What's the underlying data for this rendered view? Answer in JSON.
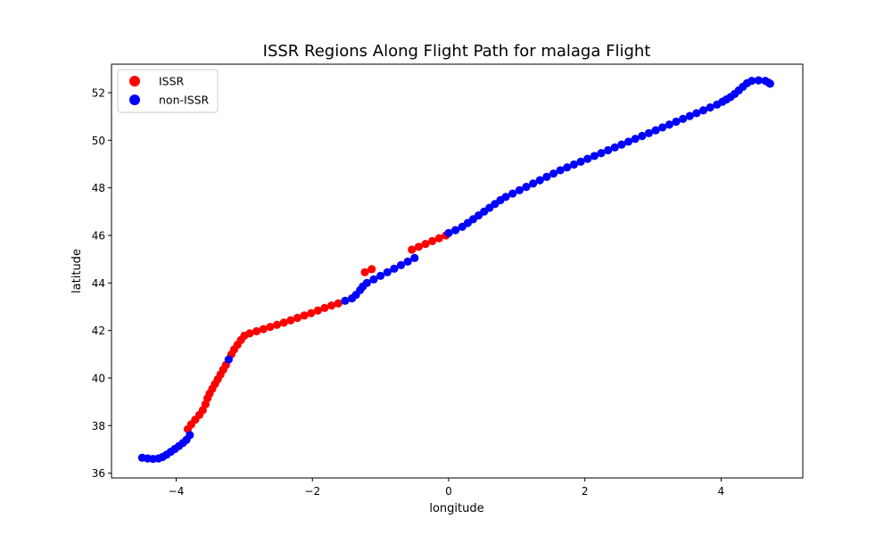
{
  "chart_data": {
    "type": "scatter",
    "title": "ISSR Regions Along Flight Path for malaga Flight",
    "xlabel": "longitude",
    "ylabel": "latitude",
    "xlim": [
      -4.95,
      5.2
    ],
    "ylim": [
      35.8,
      53.2
    ],
    "xticks": [
      -4,
      -2,
      0,
      2,
      4
    ],
    "xtick_labels": [
      "−4",
      "−2",
      "0",
      "2",
      "4"
    ],
    "yticks": [
      36,
      38,
      40,
      42,
      44,
      46,
      48,
      50,
      52
    ],
    "ytick_labels": [
      "36",
      "38",
      "40",
      "42",
      "44",
      "46",
      "48",
      "50",
      "52"
    ],
    "grid": false,
    "legend": {
      "position": "top-left"
    },
    "colors": {
      "ISSR": "#ff0000",
      "non-ISSR": "#0000ff"
    },
    "series": [
      {
        "name": "ISSR",
        "color": "#ff0000",
        "points": [
          [
            -3.83,
            37.85
          ],
          [
            -3.78,
            38.05
          ],
          [
            -3.72,
            38.25
          ],
          [
            -3.66,
            38.45
          ],
          [
            -3.61,
            38.65
          ],
          [
            -3.57,
            38.9
          ],
          [
            -3.54,
            39.15
          ],
          [
            -3.51,
            39.35
          ],
          [
            -3.47,
            39.55
          ],
          [
            -3.43,
            39.75
          ],
          [
            -3.39,
            39.95
          ],
          [
            -3.35,
            40.15
          ],
          [
            -3.31,
            40.35
          ],
          [
            -3.27,
            40.55
          ],
          [
            -3.19,
            41.0
          ],
          [
            -3.15,
            41.2
          ],
          [
            -3.1,
            41.4
          ],
          [
            -3.05,
            41.6
          ],
          [
            -3.0,
            41.78
          ],
          [
            -2.92,
            41.88
          ],
          [
            -2.82,
            41.97
          ],
          [
            -2.72,
            42.06
          ],
          [
            -2.62,
            42.15
          ],
          [
            -2.52,
            42.24
          ],
          [
            -2.42,
            42.33
          ],
          [
            -2.32,
            42.43
          ],
          [
            -2.22,
            42.53
          ],
          [
            -2.12,
            42.63
          ],
          [
            -2.02,
            42.73
          ],
          [
            -1.92,
            42.84
          ],
          [
            -1.82,
            42.95
          ],
          [
            -1.72,
            43.05
          ],
          [
            -1.62,
            43.14
          ],
          [
            -1.23,
            44.45
          ],
          [
            -1.13,
            44.58
          ],
          [
            -0.54,
            45.4
          ],
          [
            -0.44,
            45.52
          ],
          [
            -0.34,
            45.64
          ],
          [
            -0.24,
            45.76
          ],
          [
            -0.14,
            45.88
          ],
          [
            -0.04,
            46.0
          ]
        ]
      },
      {
        "name": "non-ISSR",
        "color": "#0000ff",
        "points": [
          [
            -4.5,
            36.65
          ],
          [
            -4.42,
            36.62
          ],
          [
            -4.34,
            36.6
          ],
          [
            -4.26,
            36.62
          ],
          [
            -4.2,
            36.68
          ],
          [
            -4.14,
            36.78
          ],
          [
            -4.08,
            36.9
          ],
          [
            -4.02,
            37.02
          ],
          [
            -3.96,
            37.14
          ],
          [
            -3.9,
            37.27
          ],
          [
            -3.85,
            37.4
          ],
          [
            -3.8,
            37.6
          ],
          [
            -3.23,
            40.78
          ],
          [
            -1.52,
            43.25
          ],
          [
            -1.42,
            43.35
          ],
          [
            -1.36,
            43.5
          ],
          [
            -1.3,
            43.7
          ],
          [
            -1.26,
            43.85
          ],
          [
            -1.2,
            44.0
          ],
          [
            -1.1,
            44.15
          ],
          [
            -1.0,
            44.3
          ],
          [
            -0.9,
            44.45
          ],
          [
            -0.8,
            44.6
          ],
          [
            -0.7,
            44.75
          ],
          [
            -0.6,
            44.9
          ],
          [
            -0.5,
            45.05
          ],
          [
            0.0,
            46.1
          ],
          [
            0.1,
            46.22
          ],
          [
            0.2,
            46.36
          ],
          [
            0.28,
            46.52
          ],
          [
            0.36,
            46.68
          ],
          [
            0.44,
            46.84
          ],
          [
            0.52,
            47.0
          ],
          [
            0.6,
            47.16
          ],
          [
            0.68,
            47.32
          ],
          [
            0.76,
            47.48
          ],
          [
            0.84,
            47.62
          ],
          [
            0.94,
            47.76
          ],
          [
            1.04,
            47.9
          ],
          [
            1.14,
            48.04
          ],
          [
            1.24,
            48.18
          ],
          [
            1.34,
            48.32
          ],
          [
            1.44,
            48.46
          ],
          [
            1.54,
            48.6
          ],
          [
            1.64,
            48.74
          ],
          [
            1.74,
            48.86
          ],
          [
            1.84,
            48.98
          ],
          [
            1.94,
            49.1
          ],
          [
            2.04,
            49.22
          ],
          [
            2.14,
            49.34
          ],
          [
            2.24,
            49.46
          ],
          [
            2.34,
            49.58
          ],
          [
            2.44,
            49.7
          ],
          [
            2.54,
            49.82
          ],
          [
            2.64,
            49.94
          ],
          [
            2.74,
            50.06
          ],
          [
            2.84,
            50.18
          ],
          [
            2.94,
            50.3
          ],
          [
            3.04,
            50.42
          ],
          [
            3.14,
            50.54
          ],
          [
            3.24,
            50.66
          ],
          [
            3.34,
            50.78
          ],
          [
            3.44,
            50.9
          ],
          [
            3.54,
            51.02
          ],
          [
            3.64,
            51.14
          ],
          [
            3.74,
            51.26
          ],
          [
            3.84,
            51.38
          ],
          [
            3.94,
            51.5
          ],
          [
            4.02,
            51.62
          ],
          [
            4.08,
            51.72
          ],
          [
            4.14,
            51.82
          ],
          [
            4.2,
            51.95
          ],
          [
            4.26,
            52.1
          ],
          [
            4.32,
            52.25
          ],
          [
            4.38,
            52.4
          ],
          [
            4.45,
            52.5
          ],
          [
            4.55,
            52.52
          ],
          [
            4.65,
            52.5
          ],
          [
            4.7,
            52.42
          ],
          [
            4.72,
            52.38
          ]
        ]
      }
    ]
  }
}
